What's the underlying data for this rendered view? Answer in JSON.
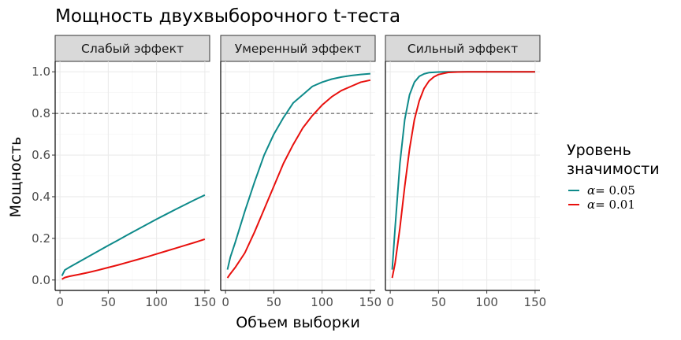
{
  "chart_data": {
    "type": "line",
    "title": "Мощность двухвыборочного t-теста",
    "xlabel": "Объем выборки",
    "ylabel": "Мощность",
    "xlim": [
      -5,
      155
    ],
    "ylim": [
      -0.05,
      1.05
    ],
    "xticks": [
      0,
      50,
      100,
      150
    ],
    "xtick_labels": [
      "0",
      "50",
      "100",
      "150"
    ],
    "yticks": [
      0.0,
      0.2,
      0.4,
      0.6,
      0.8,
      1.0
    ],
    "ytick_labels": [
      "0.0",
      "0.2",
      "0.4",
      "0.6",
      "0.8",
      "1.0"
    ],
    "reference_line": {
      "y": 0.8,
      "style": "dashed"
    },
    "grid": true,
    "legend": {
      "title_lines": [
        "Уровень",
        "значимости"
      ],
      "position": "right",
      "entries": [
        {
          "label": "α = 0.05",
          "symbol": "α",
          "value": "= 0.05",
          "color": "#0e8a8a"
        },
        {
          "label": "α = 0.01",
          "symbol": "α",
          "value": "= 0.01",
          "color": "#e8100d"
        }
      ]
    },
    "panels": [
      {
        "label": "Слабый эффект",
        "series": [
          {
            "name": "α = 0.05",
            "color": "#0e8a8a",
            "x": [
              2,
              5,
              10,
              20,
              30,
              40,
              50,
              60,
              70,
              80,
              90,
              100,
              110,
              120,
              130,
              140,
              150
            ],
            "y": [
              0.02,
              0.048,
              0.062,
              0.088,
              0.114,
              0.14,
              0.166,
              0.191,
              0.217,
              0.242,
              0.267,
              0.292,
              0.316,
              0.34,
              0.363,
              0.386,
              0.408
            ]
          },
          {
            "name": "α = 0.01",
            "color": "#e8100d",
            "x": [
              2,
              5,
              10,
              20,
              30,
              40,
              50,
              60,
              70,
              80,
              90,
              100,
              110,
              120,
              130,
              140,
              150
            ],
            "y": [
              0.004,
              0.012,
              0.018,
              0.027,
              0.037,
              0.048,
              0.06,
              0.072,
              0.085,
              0.098,
              0.111,
              0.125,
              0.139,
              0.153,
              0.167,
              0.181,
              0.196
            ]
          }
        ]
      },
      {
        "label": "Умеренный эффект",
        "series": [
          {
            "name": "α = 0.05",
            "color": "#0e8a8a",
            "x": [
              2,
              5,
              10,
              20,
              30,
              40,
              50,
              60,
              70,
              80,
              90,
              100,
              110,
              120,
              130,
              140,
              150
            ],
            "y": [
              0.05,
              0.11,
              0.18,
              0.33,
              0.47,
              0.6,
              0.7,
              0.78,
              0.85,
              0.89,
              0.93,
              0.95,
              0.965,
              0.975,
              0.982,
              0.987,
              0.991
            ]
          },
          {
            "name": "α = 0.01",
            "color": "#e8100d",
            "x": [
              2,
              5,
              10,
              20,
              30,
              40,
              50,
              60,
              70,
              80,
              90,
              100,
              110,
              120,
              130,
              140,
              150
            ],
            "y": [
              0.01,
              0.03,
              0.06,
              0.13,
              0.23,
              0.34,
              0.45,
              0.56,
              0.65,
              0.73,
              0.79,
              0.84,
              0.88,
              0.91,
              0.93,
              0.95,
              0.96
            ]
          }
        ]
      },
      {
        "label": "Сильный эффект",
        "series": [
          {
            "name": "α = 0.05",
            "color": "#0e8a8a",
            "x": [
              2,
              5,
              10,
              15,
              20,
              25,
              30,
              35,
              40,
              50,
              60,
              70,
              80,
              90,
              100,
              125,
              150
            ],
            "y": [
              0.05,
              0.25,
              0.56,
              0.77,
              0.89,
              0.95,
              0.978,
              0.99,
              0.996,
              0.999,
              1.0,
              1.0,
              1.0,
              1.0,
              1.0,
              1.0,
              1.0
            ]
          },
          {
            "name": "α = 0.01",
            "color": "#e8100d",
            "x": [
              2,
              5,
              10,
              15,
              20,
              25,
              30,
              35,
              40,
              45,
              50,
              60,
              70,
              80,
              100,
              125,
              150
            ],
            "y": [
              0.01,
              0.08,
              0.25,
              0.45,
              0.63,
              0.77,
              0.86,
              0.92,
              0.955,
              0.975,
              0.987,
              0.997,
              0.999,
              1.0,
              1.0,
              1.0,
              1.0
            ]
          }
        ]
      }
    ]
  }
}
